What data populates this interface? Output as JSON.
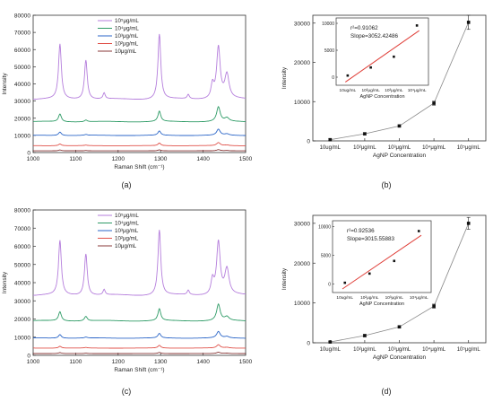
{
  "chart_data": [
    {
      "panel_label": "(a)",
      "type": "line",
      "xlabel": "Raman Shift (cm⁻¹)",
      "ylabel": "Intensity",
      "xlim": [
        1000,
        1500
      ],
      "ylim": [
        0,
        80000
      ],
      "xticks": [
        1000,
        1100,
        1200,
        1300,
        1400,
        1500
      ],
      "yticks": [
        0,
        10000,
        20000,
        30000,
        40000,
        50000,
        60000,
        70000,
        80000
      ],
      "legend_position": "top-left",
      "peaks": [
        1063,
        1124,
        1167,
        1297,
        1365,
        1422,
        1436,
        1456
      ],
      "series": [
        {
          "name": "10⁵μg/mL",
          "color": "#b57edc",
          "baseline": 31000,
          "heights": [
            32000,
            23000,
            3500,
            38000,
            2500,
            8000,
            30000,
            14000
          ]
        },
        {
          "name": "10⁴μg/mL",
          "color": "#2e9b66",
          "baseline": 18000,
          "heights": [
            4500,
            1000,
            0,
            6000,
            0,
            0,
            8500,
            2000
          ]
        },
        {
          "name": "10³μg/mL",
          "color": "#2b66c8",
          "baseline": 10000,
          "heights": [
            2000,
            500,
            0,
            2500,
            0,
            0,
            3500,
            800
          ]
        },
        {
          "name": "10²μg/mL",
          "color": "#e0524a",
          "baseline": 4000,
          "heights": [
            1000,
            300,
            0,
            1500,
            0,
            0,
            1800,
            400
          ]
        },
        {
          "name": "10μg/mL",
          "color": "#8a3a3a",
          "baseline": 1000,
          "heights": [
            500,
            200,
            0,
            600,
            0,
            0,
            700,
            200
          ]
        }
      ]
    },
    {
      "panel_label": "(b)",
      "type": "scatter",
      "xlabel": "AgNP Concentration",
      "ylabel": "Intensity",
      "categories": [
        "10ug/mL",
        "10²μg/mL",
        "10³μg/mL",
        "10⁴μg/mL",
        "10⁵μg/mL"
      ],
      "values": [
        300,
        1800,
        3800,
        9600,
        30200
      ],
      "errors": [
        200,
        300,
        300,
        500,
        1800
      ],
      "ylim": [
        0,
        32000
      ],
      "yticks": [
        0,
        10000,
        20000,
        30000
      ],
      "inset": {
        "r2": "r²=0.91062",
        "slope": "Slope=3052.42486",
        "xlabel": "AgNP Concentration",
        "categories": [
          "10ug/mL",
          "10²μg/mL",
          "10³μg/mL",
          "10⁴μg/mL"
        ],
        "values": [
          300,
          1800,
          3800,
          9600
        ],
        "yticks": [
          0,
          5000,
          10000
        ],
        "ylim": [
          -1500,
          11000
        ]
      }
    },
    {
      "panel_label": "(c)",
      "type": "line",
      "xlabel": "Raman Shift (cm⁻¹)",
      "ylabel": "Intensity",
      "xlim": [
        1000,
        1500
      ],
      "ylim": [
        0,
        80000
      ],
      "xticks": [
        1000,
        1100,
        1200,
        1300,
        1400,
        1500
      ],
      "yticks": [
        0,
        10000,
        20000,
        30000,
        40000,
        50000,
        60000,
        70000,
        80000
      ],
      "legend_position": "top-left",
      "peaks": [
        1063,
        1124,
        1167,
        1297,
        1365,
        1422,
        1436,
        1456
      ],
      "series": [
        {
          "name": "10⁵μg/mL",
          "color": "#b57edc",
          "baseline": 33000,
          "heights": [
            30000,
            23000,
            3000,
            36000,
            2500,
            8000,
            29000,
            14000
          ]
        },
        {
          "name": "10⁴μg/mL",
          "color": "#2e9b66",
          "baseline": 19000,
          "heights": [
            5000,
            2500,
            0,
            6500,
            0,
            0,
            9000,
            2000
          ]
        },
        {
          "name": "10³μg/mL",
          "color": "#2b66c8",
          "baseline": 9500,
          "heights": [
            2000,
            500,
            0,
            2500,
            0,
            0,
            3500,
            800
          ]
        },
        {
          "name": "10²μg/mL",
          "color": "#e0524a",
          "baseline": 4000,
          "heights": [
            1000,
            300,
            0,
            1500,
            0,
            0,
            1800,
            400
          ]
        },
        {
          "name": "10μg/mL",
          "color": "#8a3a3a",
          "baseline": 1000,
          "heights": [
            500,
            200,
            0,
            600,
            0,
            0,
            700,
            200
          ]
        }
      ]
    },
    {
      "panel_label": "(d)",
      "type": "scatter",
      "xlabel": "AgNP Concentration",
      "ylabel": "Intensity",
      "categories": [
        "10ug/mL",
        "10²μg/mL",
        "10³μg/mL",
        "10⁴μg/mL",
        "10⁵μg/mL"
      ],
      "values": [
        200,
        1800,
        4000,
        9200,
        30000
      ],
      "errors": [
        150,
        300,
        300,
        500,
        1500
      ],
      "ylim": [
        0,
        32000
      ],
      "yticks": [
        0,
        10000,
        20000,
        30000
      ],
      "inset": {
        "r2": "r²=0.92536",
        "slope": "Slope=3015.55883",
        "xlabel": "AgNP Concentration",
        "categories": [
          "10ug/mL",
          "10²μg/mL",
          "10³μg/mL",
          "10⁴μg/mL"
        ],
        "values": [
          200,
          1800,
          4000,
          9200
        ],
        "yticks": [
          0,
          5000,
          10000
        ],
        "ylim": [
          -1500,
          11000
        ]
      }
    }
  ]
}
